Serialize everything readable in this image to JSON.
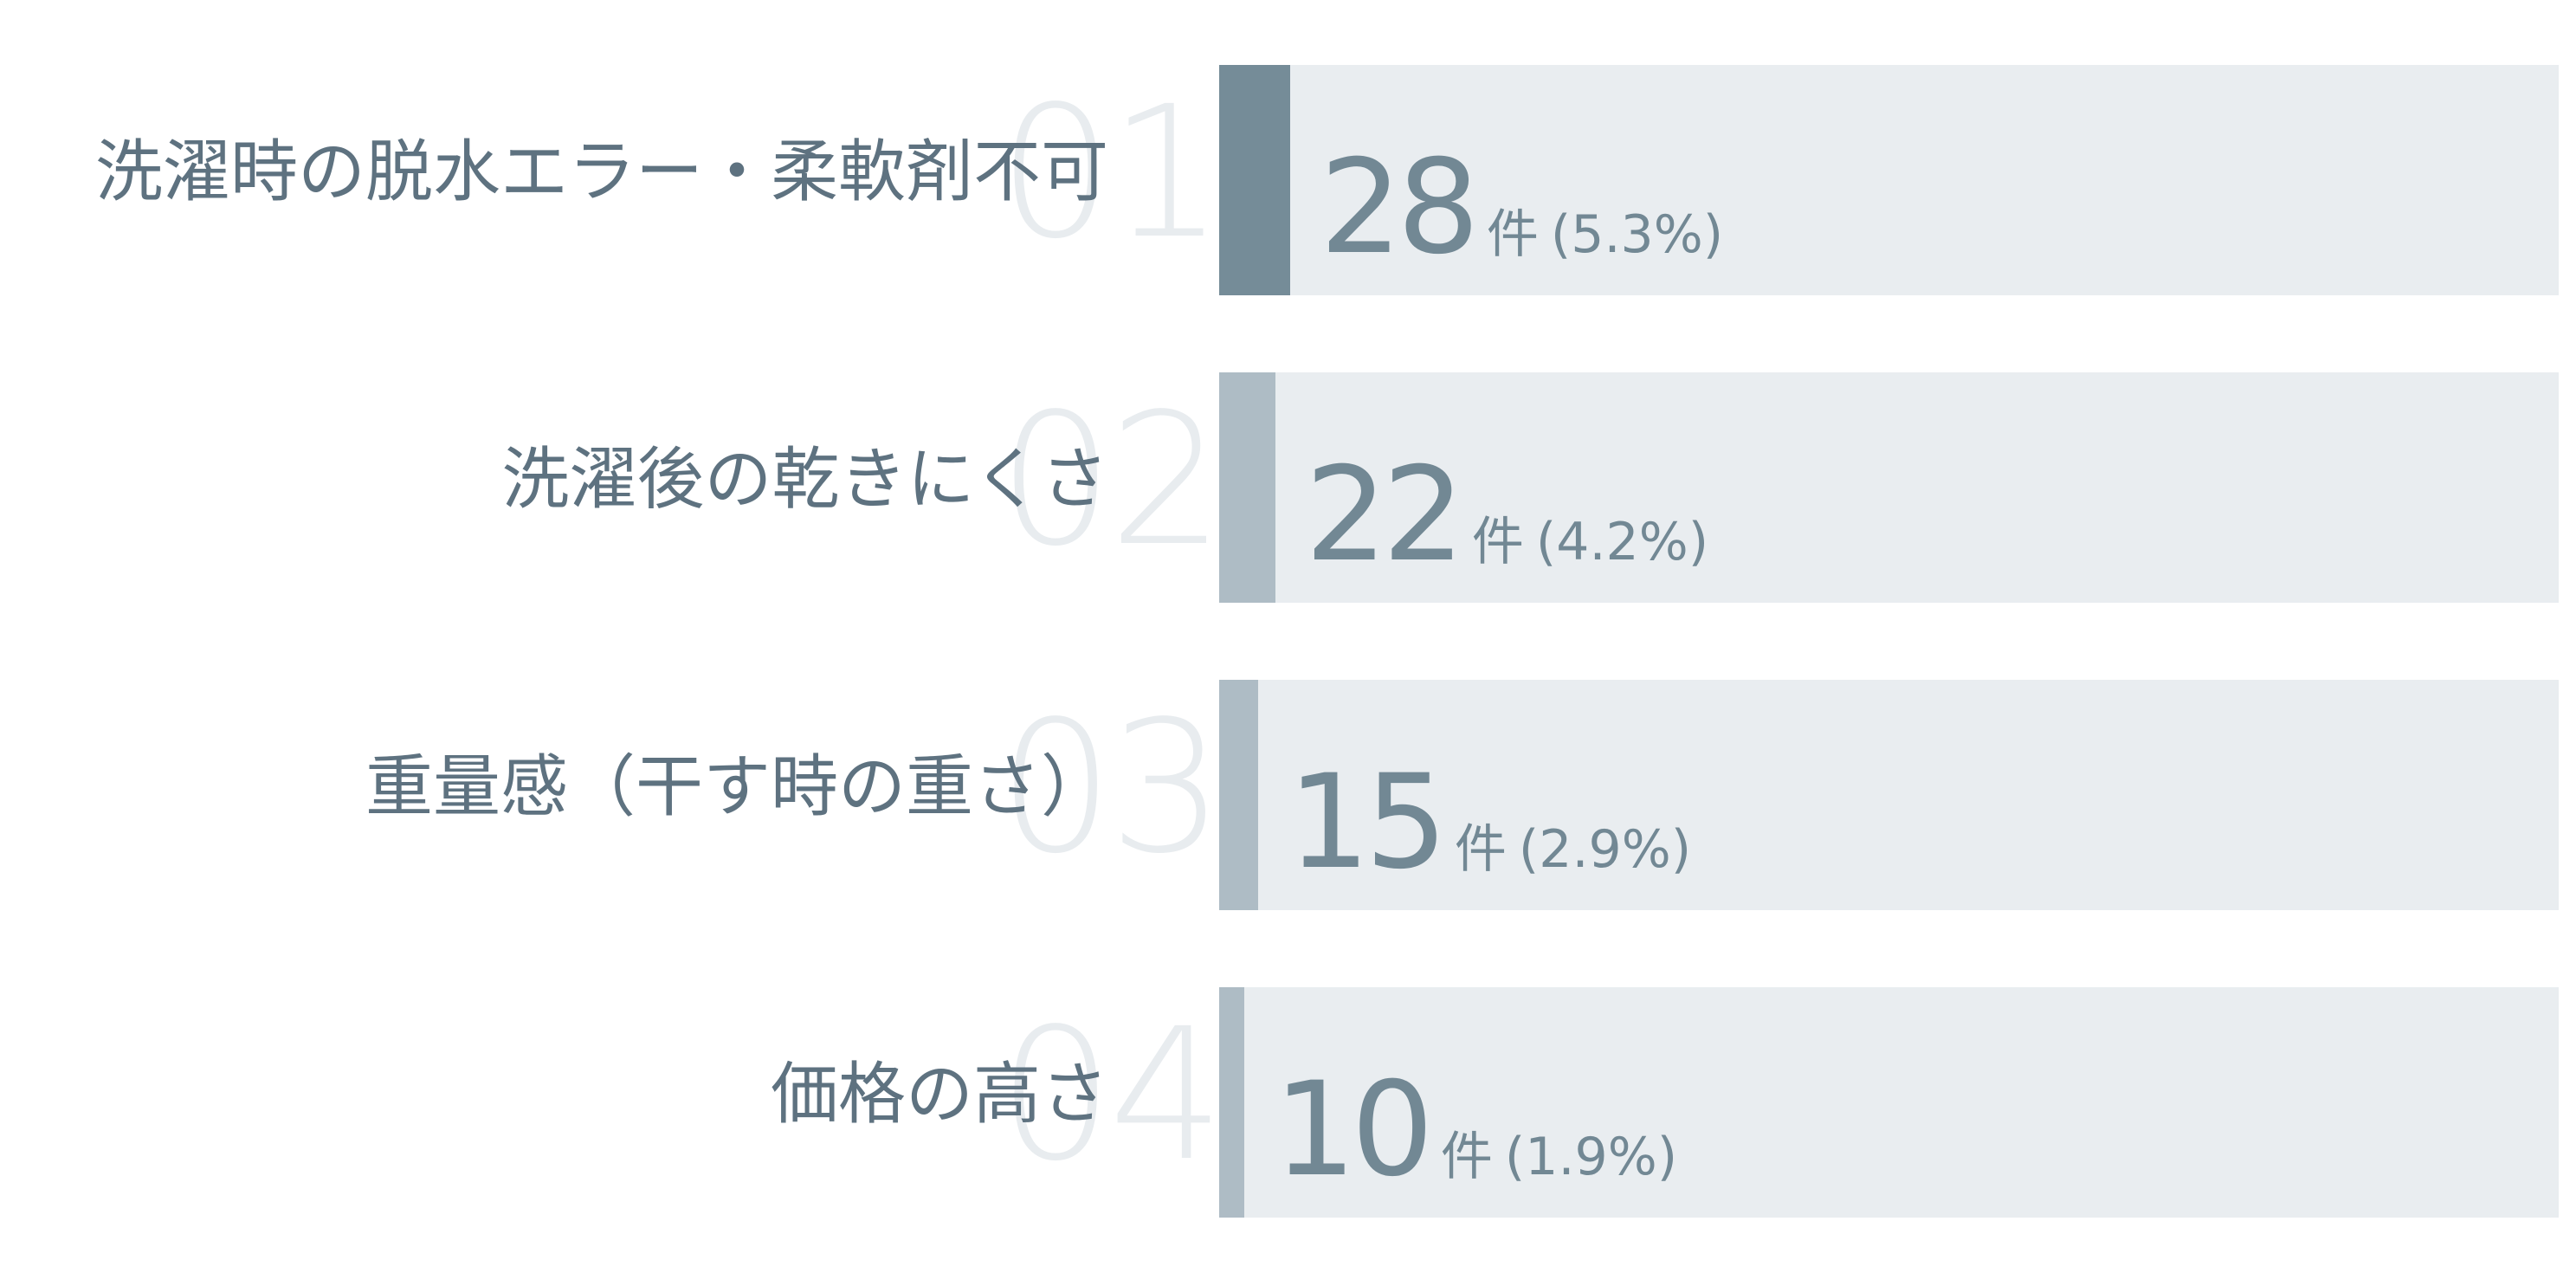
{
  "chart_data": {
    "type": "bar",
    "orientation": "horizontal",
    "categories": [
      "洗濯時の脱水エラー・柔軟剤不可",
      "洗濯後の乾きにくさ",
      "重量感（干す時の重さ）",
      "価格の高さ"
    ],
    "ranks": [
      "01",
      "02",
      "03",
      "04"
    ],
    "values": [
      28,
      22,
      15,
      10
    ],
    "value_unit": "件",
    "percent_labels": [
      "(5.3%)",
      "(4.2%)",
      "(2.9%)",
      "(1.9%)"
    ],
    "percents": [
      5.3,
      4.2,
      2.9,
      1.9
    ],
    "title": "",
    "xlabel": "",
    "ylabel": "",
    "grid": false,
    "legend": "none"
  },
  "colors": {
    "bar_top": "#758c98",
    "bar_other": "#aebcc5",
    "track": "#e9edf0",
    "rank_number": "#e8ecef",
    "label_text": "#5e7280",
    "value_text": "#728894"
  }
}
